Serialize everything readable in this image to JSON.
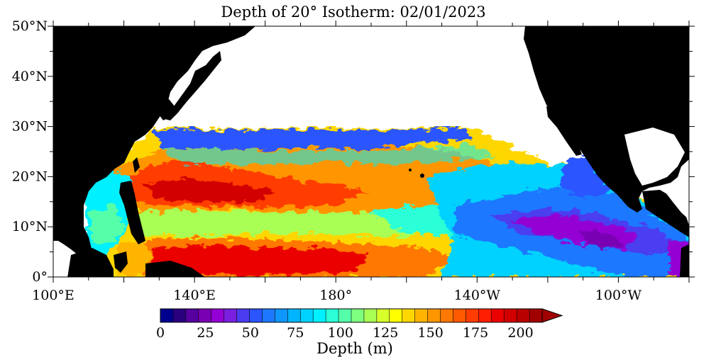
{
  "title": "Depth of 20° Isotherm: 02/01/2023",
  "map": {
    "lat_ticks": [
      "50°N",
      "40°N",
      "30°N",
      "20°N",
      "10°N",
      "0°"
    ],
    "lon_ticks": [
      "100°E",
      "140°E",
      "180°",
      "140°W",
      "100°W"
    ],
    "lon_range_east": [
      100,
      280
    ],
    "lat_range": [
      0,
      50
    ]
  },
  "colorbar": {
    "label": "Depth (m)",
    "tick_labels": [
      "0",
      "25",
      "50",
      "75",
      "100",
      "125",
      "150",
      "175",
      "200"
    ],
    "colors": {
      "land": "#000000",
      "no_data": "#ffffff",
      "scale": [
        "#00008f",
        "#2a007f",
        "#55009f",
        "#7a00b4",
        "#9400d3",
        "#7a1fe0",
        "#4b3cf0",
        "#2a55ff",
        "#1e78ff",
        "#0f96ff",
        "#00b4ff",
        "#00d2ff",
        "#00f0ff",
        "#2affd7",
        "#55ffaa",
        "#7fff7f",
        "#aaff55",
        "#d7ff2a",
        "#ffff00",
        "#ffd700",
        "#ffb400",
        "#ff9600",
        "#ff7800",
        "#ff5a00",
        "#ff3c00",
        "#ff1e00",
        "#eb0000",
        "#d20000",
        "#b90000",
        "#a00000"
      ]
    }
  }
}
